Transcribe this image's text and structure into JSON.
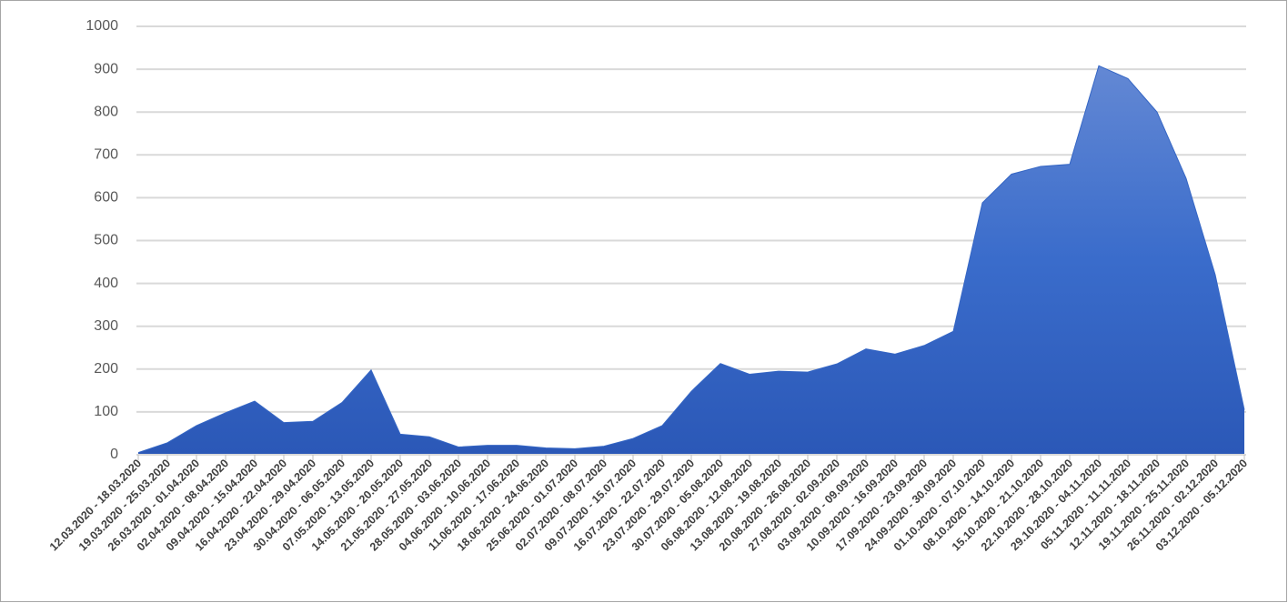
{
  "chart_data": {
    "type": "area",
    "categories": [
      "12.03.2020 - 18.03.2020",
      "19.03.2020 - 25.03.2020",
      "26.03.2020 - 01.04.2020",
      "02.04.2020 - 08.04.2020",
      "09.04.2020 - 15.04.2020",
      "16.04.2020 - 22.04.2020",
      "23.04.2020 - 29.04.2020",
      "30.04.2020 - 06.05.2020",
      "07.05.2020 - 13.05.2020",
      "14.05.2020 - 20.05.2020",
      "21.05.2020 - 27.05.2020",
      "28.05.2020 - 03.06.2020",
      "04.06.2020 - 10.06.2020",
      "11.06.2020 - 17.06.2020",
      "18.06.2020 - 24.06.2020",
      "25.06.2020 - 01.07.2020",
      "02.07.2020 - 08.07.2020",
      "09.07.2020 - 15.07.2020",
      "16.07.2020 - 22.07.2020",
      "23.07.2020 - 29.07.2020",
      "30.07.2020 - 05.08.2020",
      "06.08.2020 - 12.08.2020",
      "13.08.2020 - 19.08.2020",
      "20.08.2020 - 26.08.2020",
      "27.08.2020 - 02.09.2020",
      "03.09.2020 - 09.09.2020",
      "10.09.2020 - 16.09.2020",
      "17.09.2020 - 23.09.2020",
      "24.09.2020 - 30.09.2020",
      "01.10.2020 - 07.10.2020",
      "08.10.2020 - 14.10.2020",
      "15.10.2020 - 21.10.2020",
      "22.10.2020 - 28.10.2020",
      "29.10.2020 - 04.11.2020",
      "05.11.2020 - 11.11.2020",
      "12.11.2020 - 18.11.2020",
      "19.11.2020 - 25.11.2020",
      "26.11.2020 - 02.12.2020",
      "03.12.2020 - 05.12.2020"
    ],
    "values": [
      5,
      28,
      68,
      98,
      125,
      75,
      78,
      122,
      198,
      48,
      42,
      18,
      22,
      22,
      16,
      14,
      20,
      38,
      68,
      148,
      213,
      188,
      195,
      193,
      212,
      247,
      235,
      255,
      288,
      588,
      655,
      673,
      678,
      908,
      878,
      800,
      645,
      420,
      105
    ],
    "color": "#3566c4",
    "ylim": [
      0,
      1000
    ],
    "yticks": [
      0,
      100,
      200,
      300,
      400,
      500,
      600,
      700,
      800,
      900,
      1000
    ],
    "grid": true
  }
}
